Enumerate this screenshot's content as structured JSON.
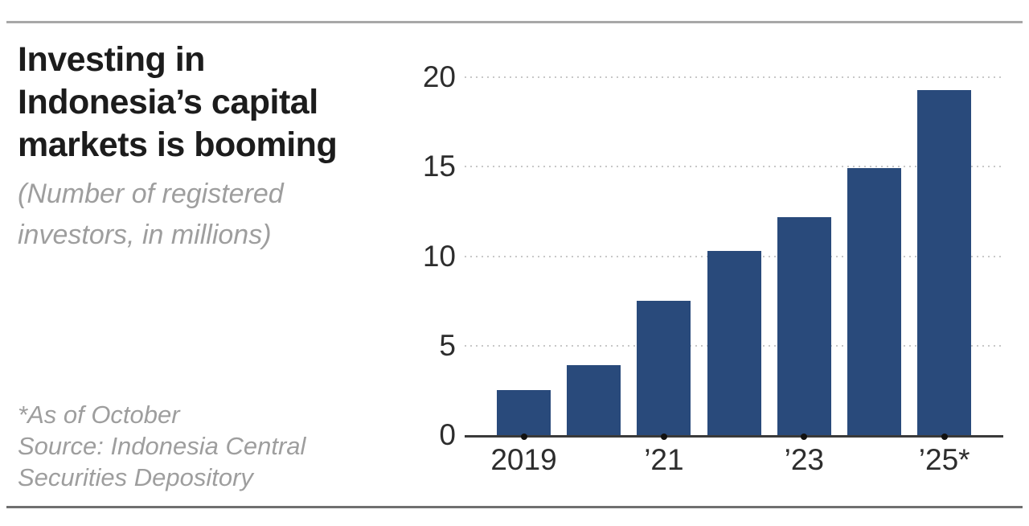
{
  "header": {
    "title": "Investing in\nIndonesia’s capital\nmarkets is booming",
    "subtitle": "(Number of registered\ninvestors, in millions)"
  },
  "footnote": {
    "text": "*As of October\nSource: Indonesia Central\nSecurities Depository"
  },
  "colors": {
    "bar": "#294a7b",
    "grid_dot": "#c8c8c8",
    "axis_line": "#3a3a3a",
    "tick_dot": "#111111",
    "title_text": "#1c1c1c",
    "muted_text": "#9e9e9e",
    "axis_text": "#2d2d2d",
    "rule_top": "#a8a8a8",
    "rule_bottom": "#6f6f6f"
  },
  "chart_data": {
    "type": "bar",
    "title": "Investing in Indonesia’s capital markets is booming",
    "subtitle": "(Number of registered investors, in millions)",
    "categories": [
      "2019",
      "2020",
      "2021",
      "2022",
      "2023",
      "2024",
      "2025"
    ],
    "values": [
      2.5,
      3.9,
      7.5,
      10.3,
      12.2,
      14.9,
      19.3
    ],
    "x_tick_labels": [
      {
        "bar_index": 0,
        "label": "2019"
      },
      {
        "bar_index": 2,
        "label": "’21"
      },
      {
        "bar_index": 4,
        "label": "’23"
      },
      {
        "bar_index": 6,
        "label": "’25*"
      }
    ],
    "y_ticks": [
      0,
      5,
      10,
      15,
      20
    ],
    "ylim": [
      0,
      20
    ],
    "xlabel": "",
    "ylabel": "",
    "grid": "horizontal-dotted",
    "legend": "none",
    "bar_color": "#294a7b",
    "note": "*As of October",
    "source": "Source: Indonesia Central Securities Depository"
  }
}
